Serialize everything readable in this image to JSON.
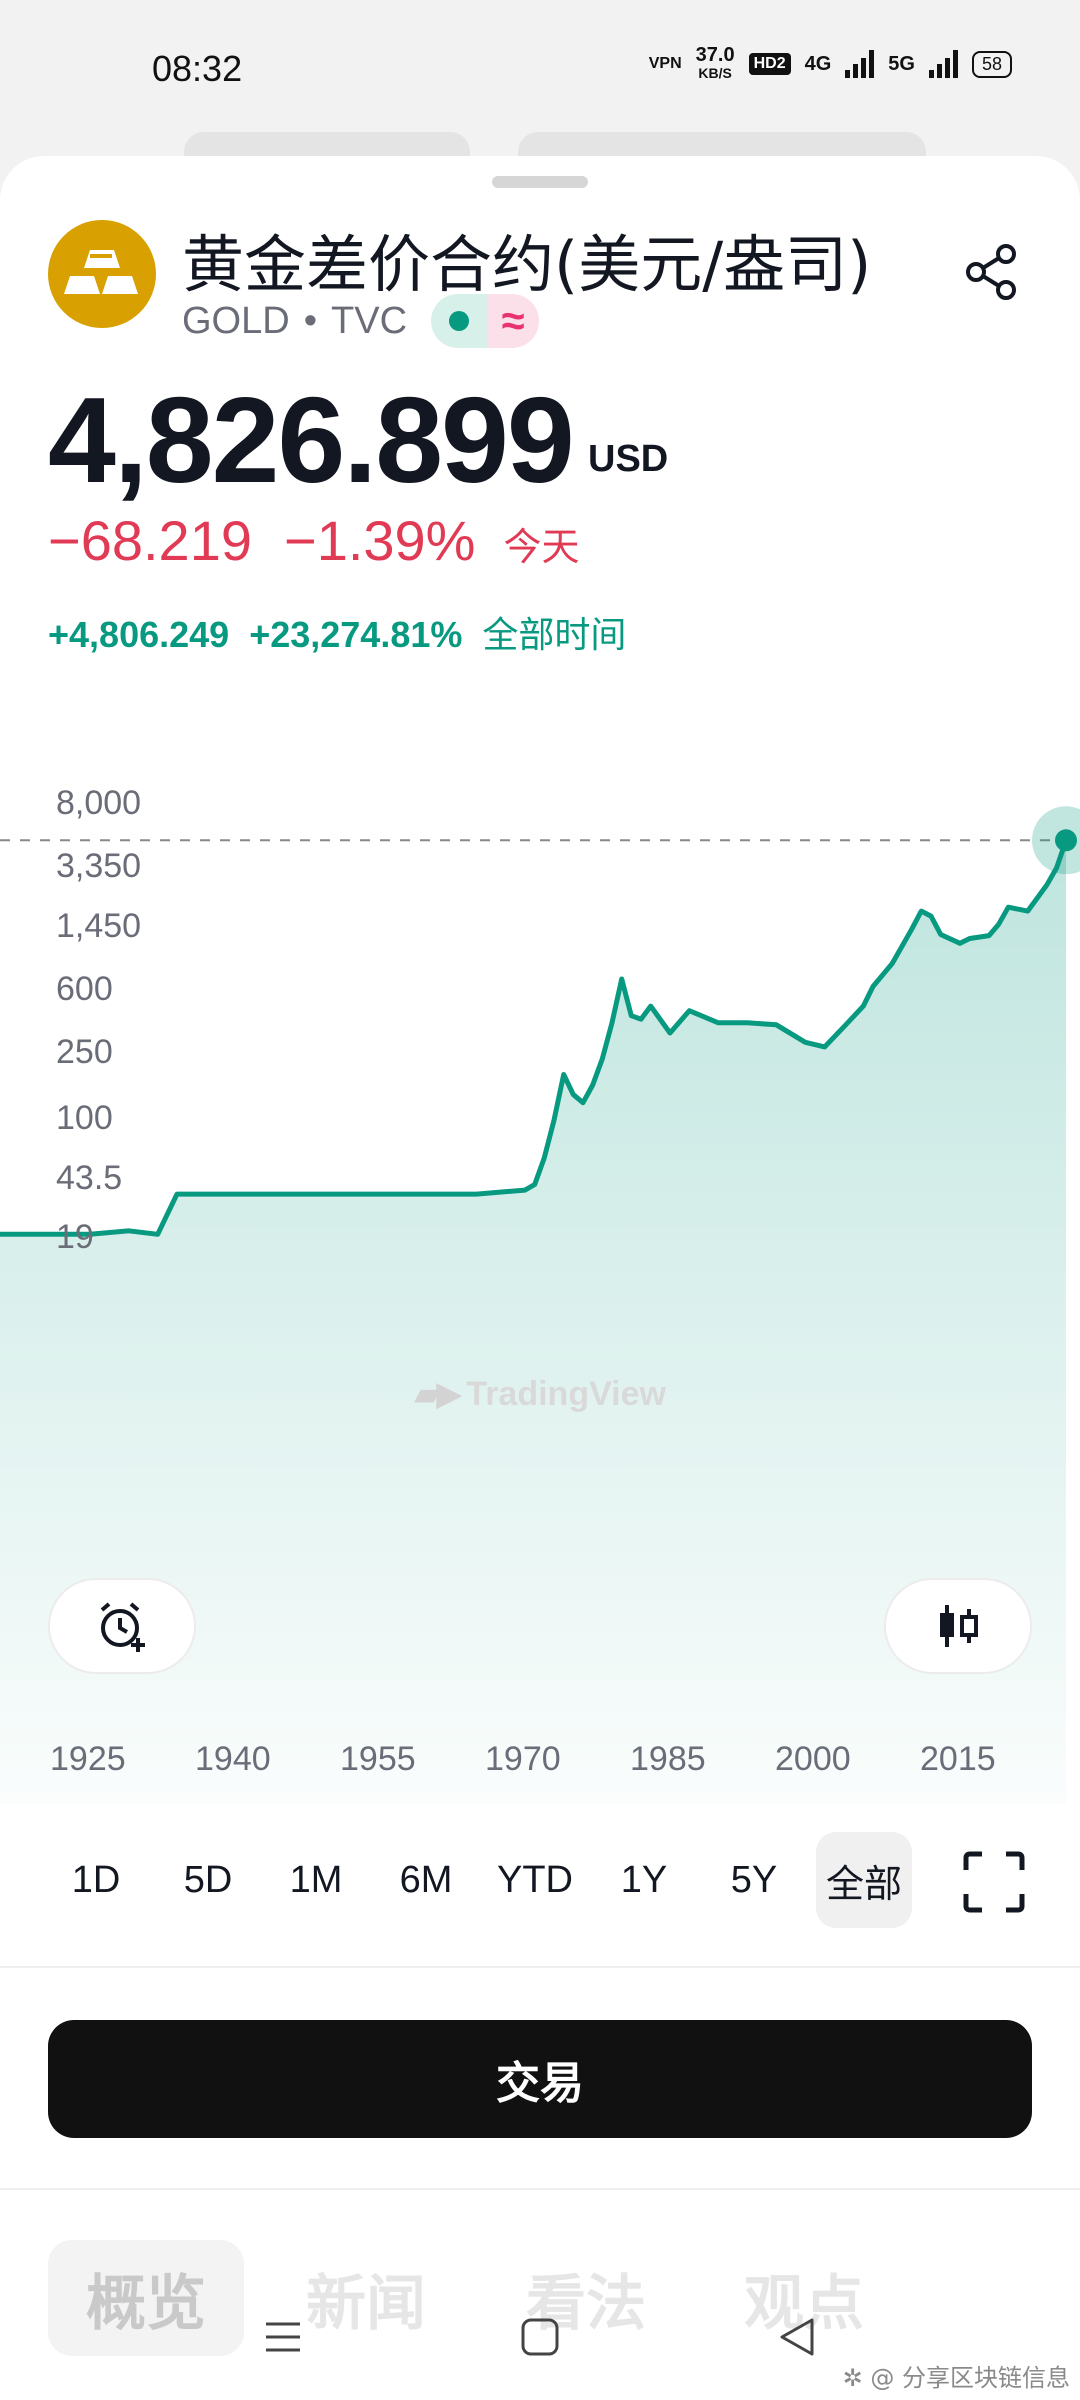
{
  "status_bar": {
    "time": "08:32",
    "vpn": "VPN",
    "speed_value": "37.0",
    "speed_unit": "KB/S",
    "hd": "HD2",
    "net1": "4G",
    "net2": "5G",
    "battery": "58"
  },
  "instrument": {
    "name": "黄金差价合约(美元/盎司)",
    "symbol": "GOLD",
    "separator": "•",
    "exchange": "TVC",
    "wave_symbol": "≈",
    "price": "4,826.899",
    "currency": "USD",
    "change_abs": "−68.219",
    "change_pct": "−1.39%",
    "change_period": "今天",
    "alltime_abs": "+4,806.249",
    "alltime_pct": "+23,274.81%",
    "alltime_period": "全部时间"
  },
  "chart_data": {
    "type": "area",
    "y_scale": "log",
    "y_ticks": [
      "8,000",
      "3,350",
      "1,450",
      "600",
      "250",
      "100",
      "43.5",
      "19"
    ],
    "x_ticks": [
      "1925",
      "1940",
      "1955",
      "1970",
      "1985",
      "2000",
      "2015"
    ],
    "last_value": 4826.899,
    "series": [
      {
        "x": [
          1915,
          1925,
          1929,
          1932,
          1934,
          1950,
          1965,
          1970,
          1971,
          1972,
          1973,
          1974,
          1975,
          1976,
          1977,
          1978,
          1979,
          1980,
          1981,
          1982,
          1983,
          1985,
          1987,
          1990,
          1993,
          1996,
          1999,
          2001,
          2003,
          2005,
          2006,
          2008,
          2010,
          2011,
          2012,
          2013,
          2015,
          2016,
          2018,
          2019,
          2020,
          2022,
          2024,
          2025,
          2026
        ],
        "values": [
          20,
          20,
          21,
          20,
          35,
          35,
          35,
          37,
          40,
          58,
          98,
          185,
          140,
          125,
          160,
          230,
          380,
          700,
          420,
          400,
          480,
          330,
          450,
          380,
          380,
          370,
          290,
          272,
          360,
          480,
          630,
          870,
          1400,
          1800,
          1680,
          1300,
          1150,
          1230,
          1280,
          1500,
          1900,
          1800,
          2600,
          3300,
          4826.899
        ]
      }
    ],
    "line_color": "#089981",
    "grid": false
  },
  "chart_ui": {
    "watermark": "TradingView",
    "alert_button_icon": "alarm-plus-icon",
    "chart_type_button_icon": "candlestick-icon"
  },
  "range_tabs": [
    "1D",
    "5D",
    "1M",
    "6M",
    "YTD",
    "1Y",
    "5Y",
    "全部"
  ],
  "active_range": "全部",
  "trade_button": "交易",
  "bottom_tabs": [
    "概览",
    "新闻",
    "看法",
    "观点"
  ],
  "credit": "✲ @ 分享区块链信息"
}
